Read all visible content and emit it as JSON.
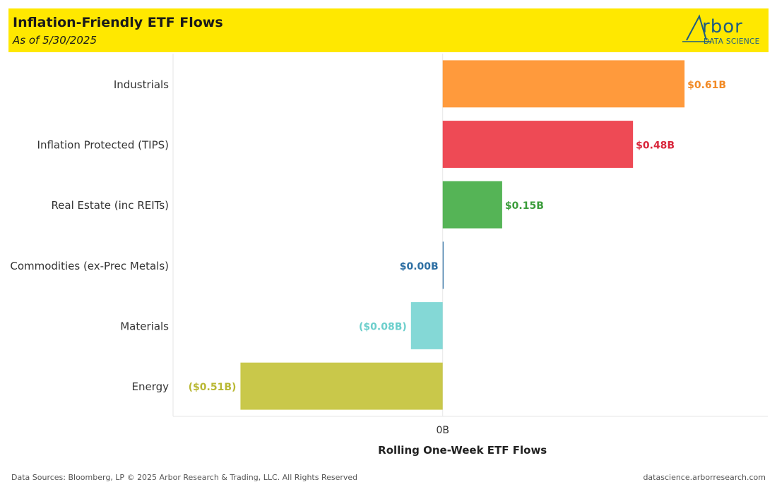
{
  "header": {
    "title": "Inflation-Friendly ETF Flows",
    "subtitle": "As of 5/30/2025",
    "logo_word": "rbor",
    "logo_sub": "DATA SCIENCE",
    "background": "#ffe800"
  },
  "footer": {
    "sources": "Data Sources: Bloomberg, LP © 2025 Arbor Research & Trading, LLC. All Rights Reserved",
    "url": "datascience.arborresearch.com"
  },
  "chart_data": {
    "type": "bar",
    "orientation": "horizontal",
    "categories": [
      "Industrials",
      "Inflation Protected (TIPS)",
      "Real Estate (inc REITs)",
      "Commodities (ex-Prec Metals)",
      "Materials",
      "Energy"
    ],
    "values": [
      0.61,
      0.48,
      0.15,
      0.0,
      -0.08,
      -0.51
    ],
    "data_labels": [
      "$0.61B",
      "$0.48B",
      "$0.15B",
      "$0.00B",
      "($0.08B)",
      "($0.51B)"
    ],
    "colors": [
      "#ff9a3c",
      "#ee4a55",
      "#55b456",
      "#2d6fa3",
      "#84d8d6",
      "#c9c84a"
    ],
    "label_colors": [
      "#f28a25",
      "#d9263b",
      "#3a9c3a",
      "#2d6fa3",
      "#6ccfcc",
      "#b9b834"
    ],
    "xlabel": "Rolling One-Week ETF Flows",
    "x_tick_labels": [
      "0B"
    ],
    "xlim": [
      -0.68,
      0.82
    ],
    "grid": false
  }
}
